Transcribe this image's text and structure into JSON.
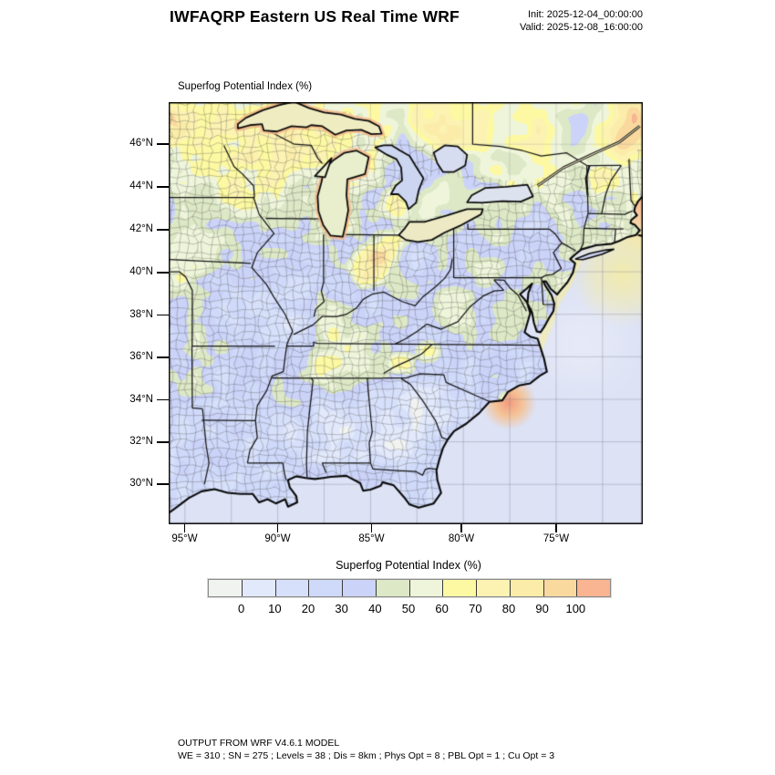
{
  "header": {
    "title": "IWFAQRP Eastern US Real Time WRF",
    "init": "Init: 2025-12-04_00:00:00",
    "valid": "Valid: 2025-12-08_16:00:00"
  },
  "map": {
    "label": "Superfog Potential Index   (%)"
  },
  "axes": {
    "lat_labels": [
      "46°N",
      "44°N",
      "42°N",
      "40°N",
      "38°N",
      "36°N",
      "34°N",
      "32°N",
      "30°N"
    ],
    "lon_labels": [
      "95°W",
      "90°W",
      "85°W",
      "80°W",
      "75°W"
    ]
  },
  "colorbar": {
    "title": "Superfog Potential Index  (%)",
    "tick_labels": [
      "0",
      "10",
      "20",
      "30",
      "40",
      "50",
      "60",
      "70",
      "80",
      "90",
      "100"
    ]
  },
  "footer": {
    "line1": "OUTPUT FROM WRF V4.6.1 MODEL",
    "line2": "WE = 310 ; SN = 275 ; Levels = 38 ; Dis = 8km ; Phys Opt = 8 ; PBL Opt = 1 ; Cu Opt = 3"
  },
  "chart_data": {
    "type": "heatmap",
    "title": "Superfog Potential Index (%)",
    "region": "Eastern US WRF domain",
    "lon_ticks_deg_w": [
      95,
      90,
      85,
      80,
      75
    ],
    "lat_ticks_deg_n": [
      46,
      44,
      42,
      40,
      38,
      36,
      34,
      32,
      30
    ],
    "levels": [
      0,
      10,
      20,
      30,
      40,
      50,
      60,
      70,
      80,
      90,
      100
    ],
    "palette": [
      "#f1f3f1",
      "#e2e9fb",
      "#d7e0fa",
      "#cfd9f9",
      "#cbd3f8",
      "#dde8c6",
      "#eef5da",
      "#fdf9a3",
      "#fcf2b2",
      "#fbeda9",
      "#fad99f",
      "#f9b491"
    ],
    "ocean_color": "#dde2f5",
    "legend_position": "bottom"
  }
}
